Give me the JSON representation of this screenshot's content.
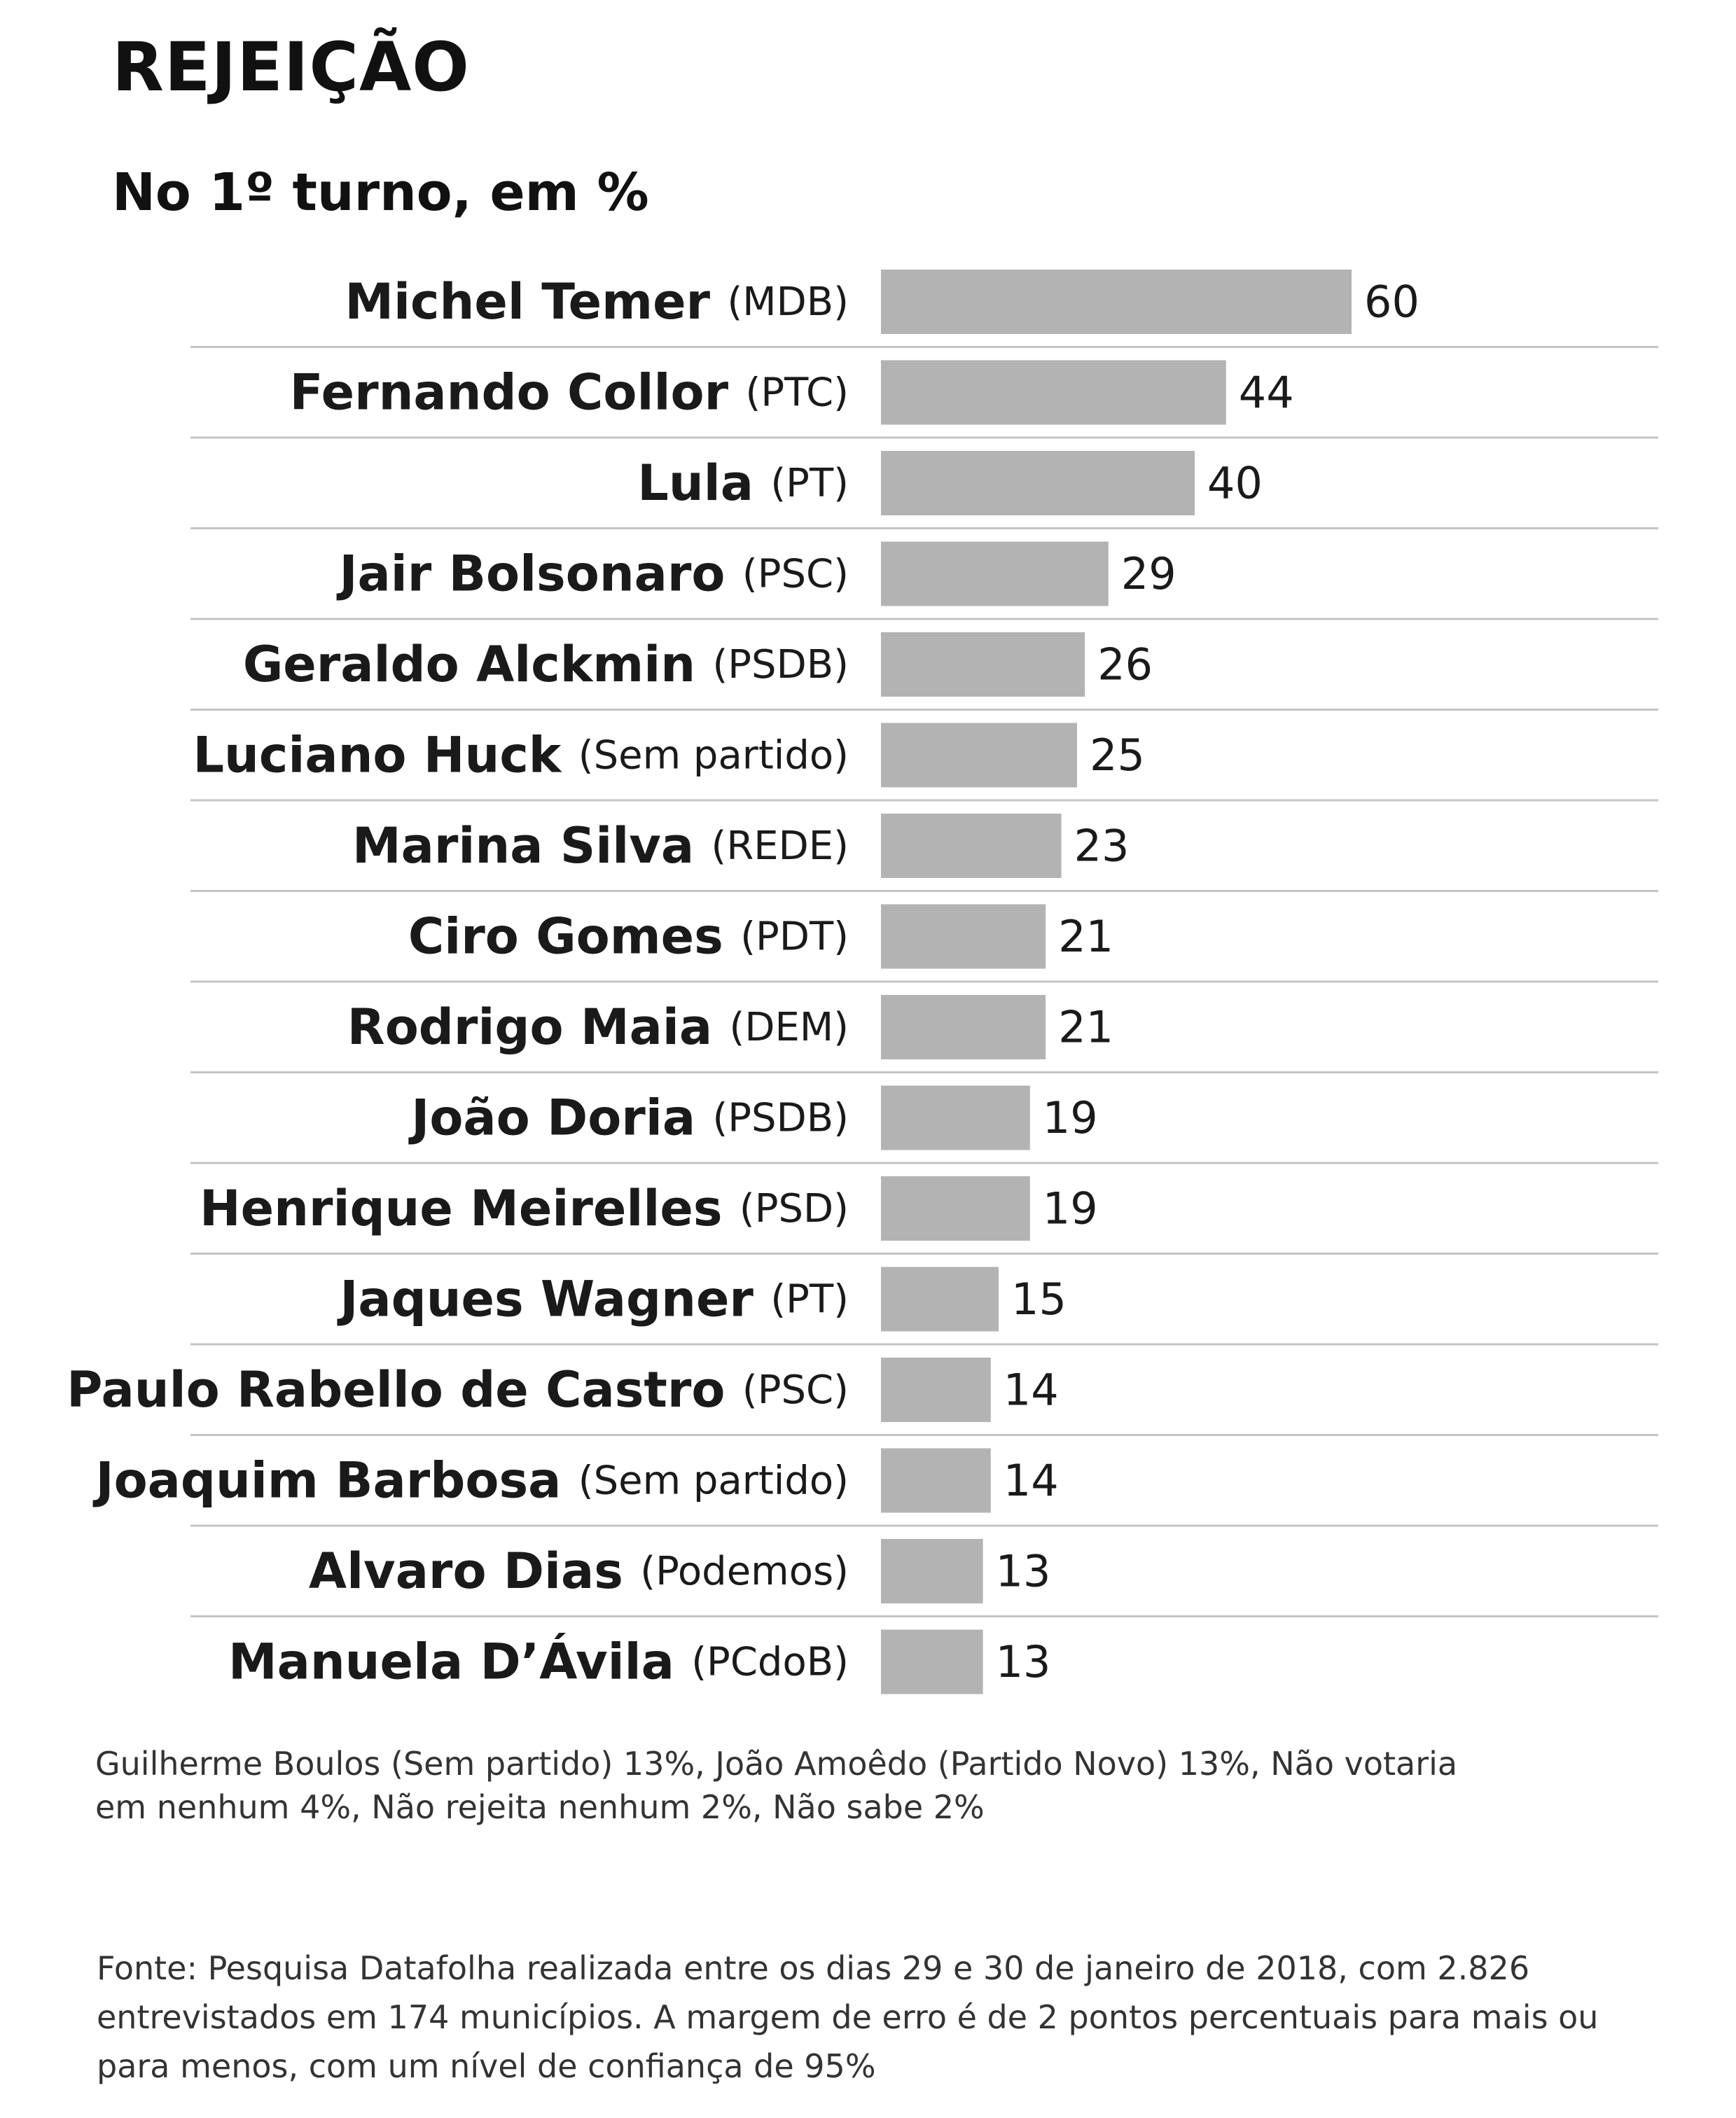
{
  "chart_data": {
    "type": "bar",
    "orientation": "horizontal",
    "title": "REJEIÇÃO",
    "subtitle": "No 1º turno, em %",
    "categories": [
      {
        "name": "Michel Temer",
        "party": "(MDB)"
      },
      {
        "name": "Fernando Collor",
        "party": "(PTC)"
      },
      {
        "name": "Lula",
        "party": "(PT)"
      },
      {
        "name": "Jair Bolsonaro",
        "party": "(PSC)"
      },
      {
        "name": "Geraldo Alckmin",
        "party": "(PSDB)"
      },
      {
        "name": "Luciano Huck",
        "party": "(Sem partido)"
      },
      {
        "name": "Marina Silva",
        "party": "(REDE)"
      },
      {
        "name": "Ciro Gomes",
        "party": "(PDT)"
      },
      {
        "name": "Rodrigo Maia",
        "party": "(DEM)"
      },
      {
        "name": "João Doria",
        "party": "(PSDB)"
      },
      {
        "name": "Henrique Meirelles",
        "party": "(PSD)"
      },
      {
        "name": "Jaques Wagner",
        "party": "(PT)"
      },
      {
        "name": "Paulo Rabello de Castro",
        "party": "(PSC)"
      },
      {
        "name": "Joaquim Barbosa",
        "party": "(Sem partido)"
      },
      {
        "name": "Alvaro Dias",
        "party": "(Podemos)"
      },
      {
        "name": "Manuela D’Ávila",
        "party": "(PCdoB)"
      }
    ],
    "values": [
      60,
      44,
      40,
      29,
      26,
      25,
      23,
      21,
      21,
      19,
      19,
      15,
      14,
      14,
      13,
      13
    ],
    "xlim": [
      0,
      60
    ],
    "bar_color": "#b3b3b3",
    "grid": false,
    "legend": "none"
  },
  "note": "Guilherme Boulos (Sem partido) 13%, João Amoêdo (Partido Novo) 13%, Não votaria em nenhum 4%, Não rejeita nenhum 2%, Não sabe 2%",
  "source": "Fonte: Pesquisa Datafolha realizada entre os dias 29 e 30 de janeiro de 2018, com 2.826 entrevistados em 174 municípios. A margem de erro é de 2 pontos percentuais para mais ou para menos, com um nível de confiança de 95%"
}
